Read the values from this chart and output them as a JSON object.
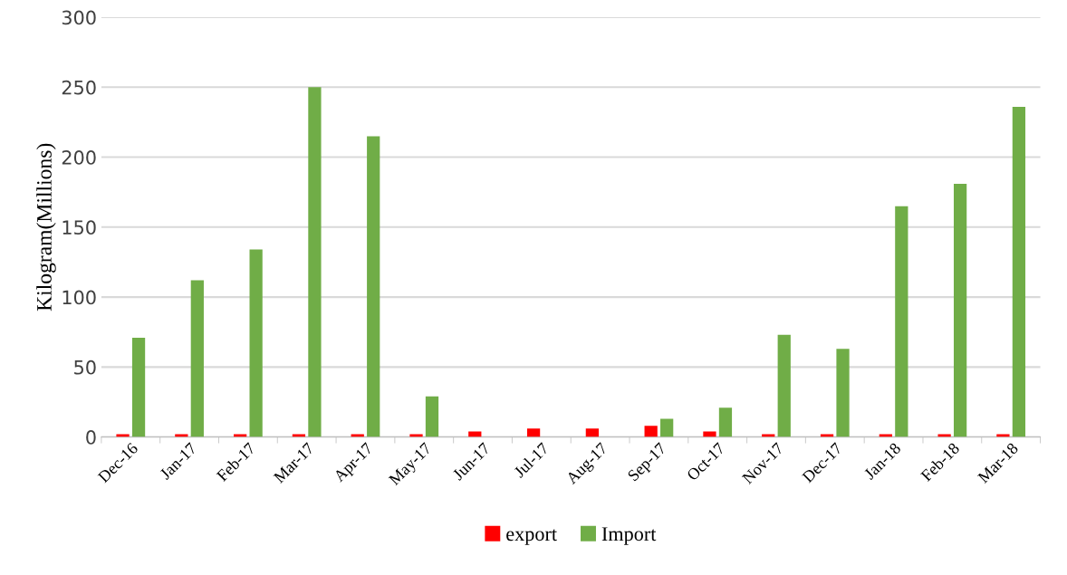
{
  "chart_data": {
    "type": "bar",
    "ylabel": "Kilogram(Millions)",
    "categories": [
      "Dec-16",
      "Jan-17",
      "Feb-17",
      "Mar-17",
      "Apr-17",
      "May-17",
      "Jun-17",
      "Jul-17",
      "Aug-17",
      "Sep-17",
      "Oct-17",
      "Nov-17",
      "Dec-17",
      "Jan-18",
      "Feb-18",
      "Mar-18"
    ],
    "series": [
      {
        "name": "export",
        "color": "#ff0000",
        "values": [
          2,
          2,
          2,
          2,
          2,
          2,
          4,
          6,
          6,
          8,
          4,
          2,
          2,
          2,
          2,
          2
        ]
      },
      {
        "name": "Import",
        "color": "#70ad47",
        "values": [
          71,
          112,
          134,
          250,
          215,
          29,
          0,
          0,
          0,
          13,
          21,
          73,
          63,
          165,
          181,
          236
        ]
      }
    ],
    "ylim": [
      0,
      300
    ],
    "yticks": [
      0,
      50,
      100,
      150,
      200,
      250,
      300
    ],
    "grid": "y",
    "legend": "bottom"
  }
}
